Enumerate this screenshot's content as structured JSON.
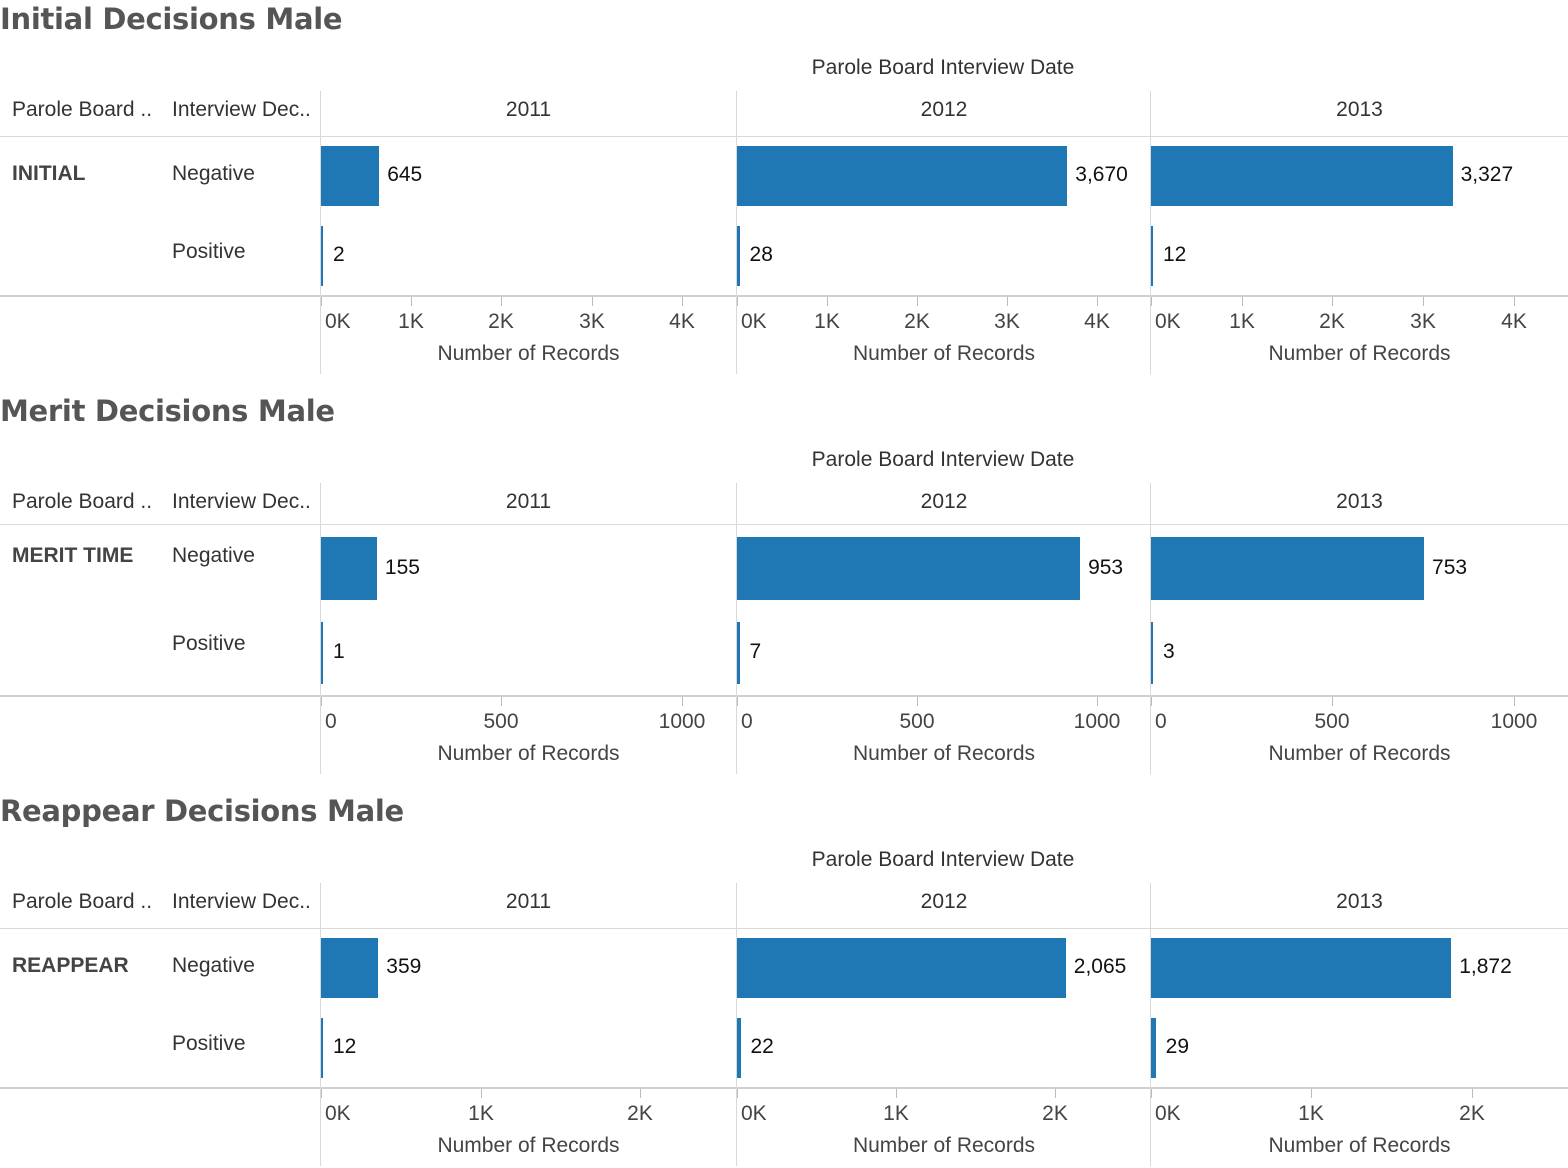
{
  "chart_data": [
    {
      "type": "bar",
      "title": "Initial Decisions Male",
      "column_header": "Parole Board Interview Date",
      "row_headers": [
        "Parole Board ..",
        "Interview Dec.."
      ],
      "group": "INITIAL",
      "categories": [
        "Negative",
        "Positive"
      ],
      "panels": [
        {
          "year": "2011",
          "values": [
            645,
            2
          ],
          "labels": [
            "645",
            "2"
          ]
        },
        {
          "year": "2012",
          "values": [
            3670,
            28
          ],
          "labels": [
            "3,670",
            "28"
          ]
        },
        {
          "year": "2013",
          "values": [
            3327,
            12
          ],
          "labels": [
            "3,327",
            "12"
          ]
        }
      ],
      "xlabel": "Number of Records",
      "xlim": [
        0,
        4600
      ],
      "ticks": [
        0,
        1000,
        2000,
        3000,
        4000
      ],
      "tick_labels": [
        "0K",
        "1K",
        "2K",
        "3K",
        "4K"
      ]
    },
    {
      "type": "bar",
      "title": "Merit Decisions Male",
      "column_header": "Parole Board Interview Date",
      "row_headers": [
        "Parole Board ..",
        "Interview Dec.."
      ],
      "group": "MERIT TIME",
      "categories": [
        "Negative",
        "Positive"
      ],
      "panels": [
        {
          "year": "2011",
          "values": [
            155,
            1
          ],
          "labels": [
            "155",
            "1"
          ]
        },
        {
          "year": "2012",
          "values": [
            953,
            7
          ],
          "labels": [
            "953",
            "7"
          ]
        },
        {
          "year": "2013",
          "values": [
            753,
            3
          ],
          "labels": [
            "753",
            "3"
          ]
        }
      ],
      "xlabel": "Number of Records",
      "xlim": [
        0,
        1150
      ],
      "ticks": [
        0,
        500,
        1000
      ],
      "tick_labels": [
        "0",
        "500",
        "1000"
      ]
    },
    {
      "type": "bar",
      "title": "Reappear Decisions Male",
      "column_header": "Parole Board Interview Date",
      "row_headers": [
        "Parole Board ..",
        "Interview Dec.."
      ],
      "group": "REAPPEAR",
      "categories": [
        "Negative",
        "Positive"
      ],
      "panels": [
        {
          "year": "2011",
          "values": [
            359,
            12
          ],
          "labels": [
            "359",
            "12"
          ]
        },
        {
          "year": "2012",
          "values": [
            2065,
            22
          ],
          "labels": [
            "2,065",
            "22"
          ]
        },
        {
          "year": "2013",
          "values": [
            1872,
            29
          ],
          "labels": [
            "1,872",
            "29"
          ]
        }
      ],
      "xlabel": "Number of Records",
      "xlim": [
        0,
        2600
      ],
      "ticks": [
        0,
        1000,
        2000
      ],
      "tick_labels": [
        "0K",
        "1K",
        "2K"
      ]
    }
  ],
  "colors": {
    "bar": "#1f77b4"
  }
}
